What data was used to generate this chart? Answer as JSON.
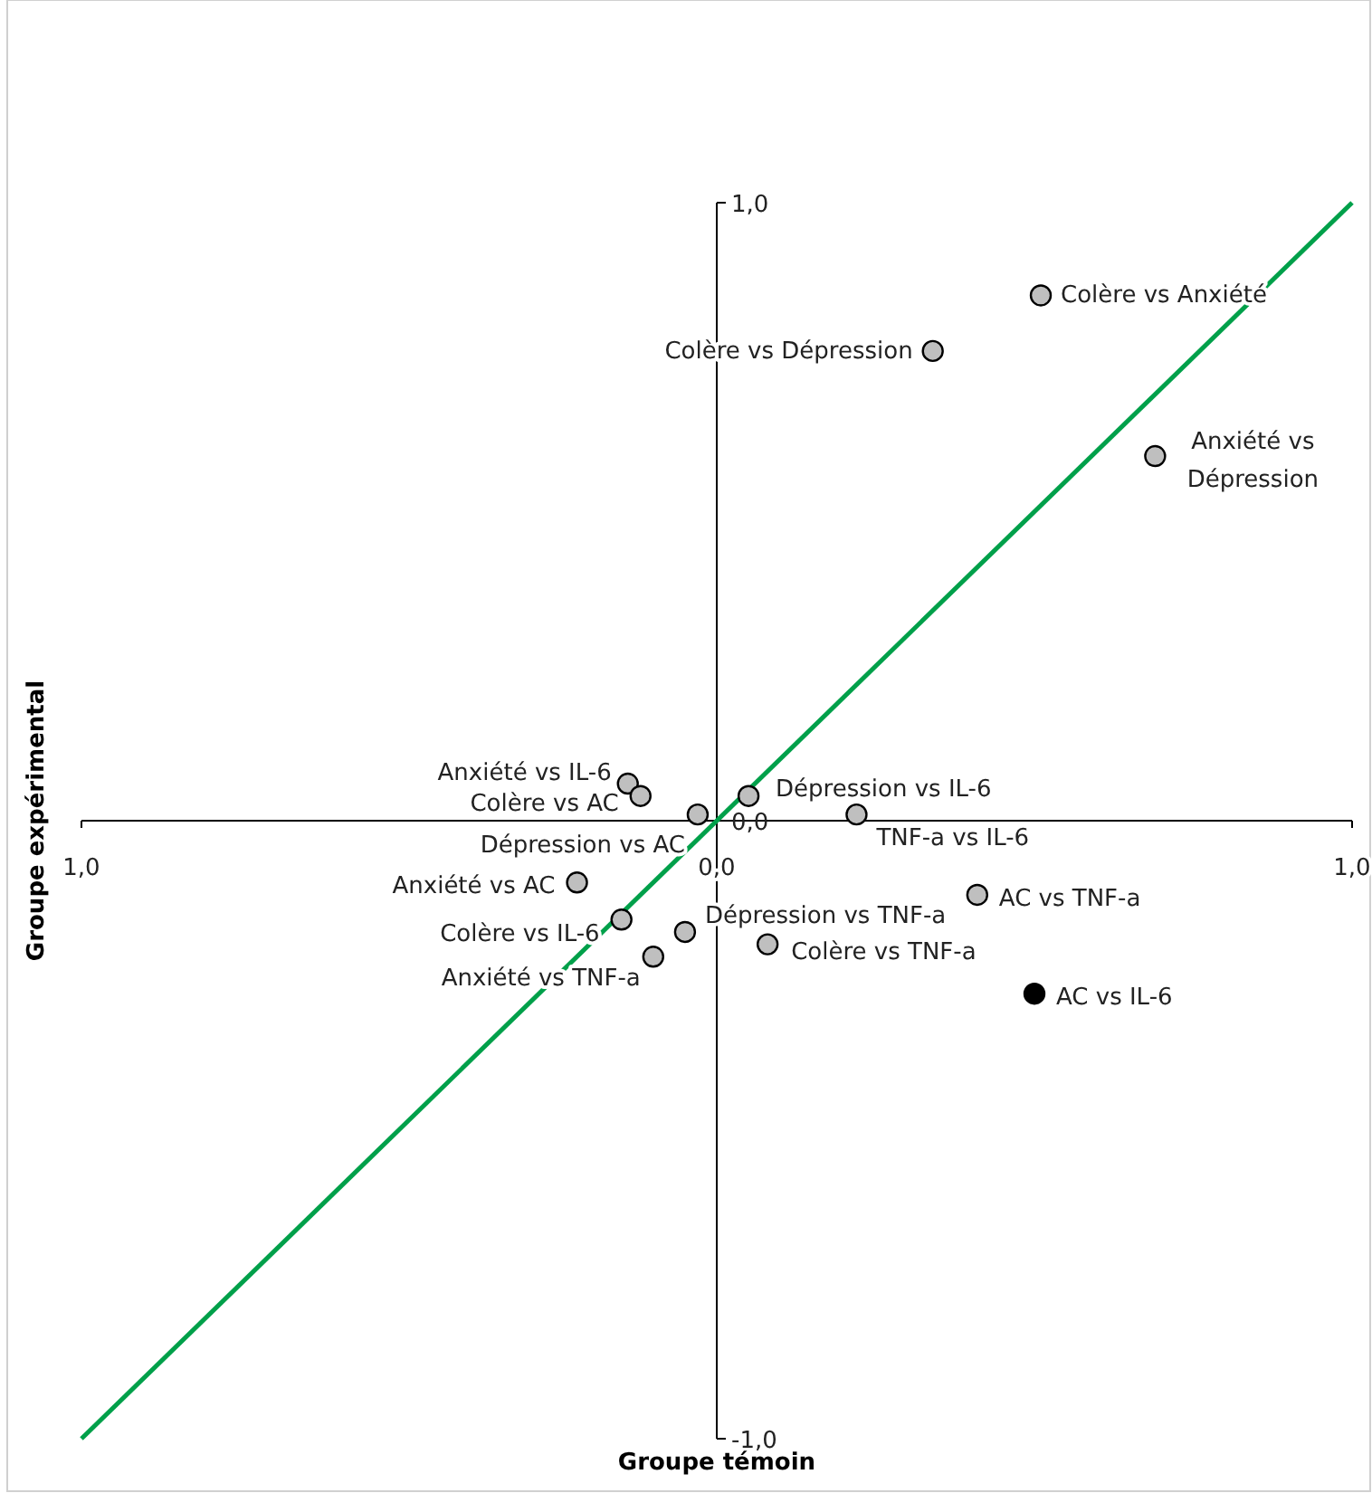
{
  "chart_data": {
    "type": "scatter",
    "xlabel": "Groupe témoin",
    "ylabel": "Groupe expérimental",
    "xlim": [
      -1,
      1
    ],
    "ylim": [
      -1,
      1
    ],
    "xticks": [
      {
        "value": -1,
        "label": "1,0"
      },
      {
        "value": 0,
        "label": "0,0"
      },
      {
        "value": 1,
        "label": "1,0"
      }
    ],
    "yticks": [
      {
        "value": -1,
        "label": "-1,0"
      },
      {
        "value": 0,
        "label": "0,0"
      },
      {
        "value": 1,
        "label": "1,0"
      }
    ],
    "marker": "circle",
    "grid": false,
    "series": [
      {
        "x": [
          0.51,
          0.34,
          0.69,
          0.05,
          0.22,
          -0.14,
          -0.12,
          -0.03,
          -0.22,
          -0.15,
          -0.05,
          -0.1,
          0.08,
          0.41,
          0.5
        ],
        "values": [
          0.85,
          0.76,
          0.59,
          0.04,
          0.01,
          0.06,
          0.04,
          0.01,
          -0.1,
          -0.16,
          -0.18,
          -0.22,
          -0.2,
          -0.12,
          -0.28
        ],
        "colors": [
          "#bfbfbf",
          "#bfbfbf",
          "#bfbfbf",
          "#bfbfbf",
          "#bfbfbf",
          "#bfbfbf",
          "#bfbfbf",
          "#bfbfbf",
          "#bfbfbf",
          "#bfbfbf",
          "#bfbfbf",
          "#bfbfbf",
          "#bfbfbf",
          "#bfbfbf",
          "#000000"
        ]
      },
      {
        "type": "line",
        "x": [
          -1,
          1
        ],
        "values": [
          -1,
          1
        ],
        "color": "#00a04a",
        "line_style": "solid",
        "marker": "none"
      }
    ],
    "annotations": [
      {
        "text": "Colère vs Anxiété",
        "x": 0.51,
        "y": 0.85
      },
      {
        "text": "Colère vs Dépression",
        "x": 0.34,
        "y": 0.76
      },
      {
        "text": "Anxiété vs Dépression",
        "x": 0.69,
        "y": 0.59
      },
      {
        "text": "Dépression vs IL-6",
        "x": 0.05,
        "y": 0.04
      },
      {
        "text": "TNF-a vs IL-6",
        "x": 0.22,
        "y": 0.01
      },
      {
        "text": "Anxiété vs IL-6",
        "x": -0.14,
        "y": 0.06
      },
      {
        "text": "Colère vs AC",
        "x": -0.12,
        "y": 0.04
      },
      {
        "text": "Dépression vs AC",
        "x": -0.03,
        "y": 0.01
      },
      {
        "text": "Anxiété vs AC",
        "x": -0.22,
        "y": -0.1
      },
      {
        "text": "Colère vs IL-6",
        "x": -0.15,
        "y": -0.16
      },
      {
        "text": "Dépression vs TNF-a",
        "x": -0.05,
        "y": -0.18
      },
      {
        "text": "Anxiété vs TNF-a",
        "x": -0.1,
        "y": -0.22
      },
      {
        "text": "Colère vs TNF-a",
        "x": 0.08,
        "y": -0.2
      },
      {
        "text": "AC vs TNF-a",
        "x": 0.41,
        "y": -0.12
      },
      {
        "text": "AC vs IL-6",
        "x": 0.5,
        "y": -0.28
      }
    ]
  }
}
